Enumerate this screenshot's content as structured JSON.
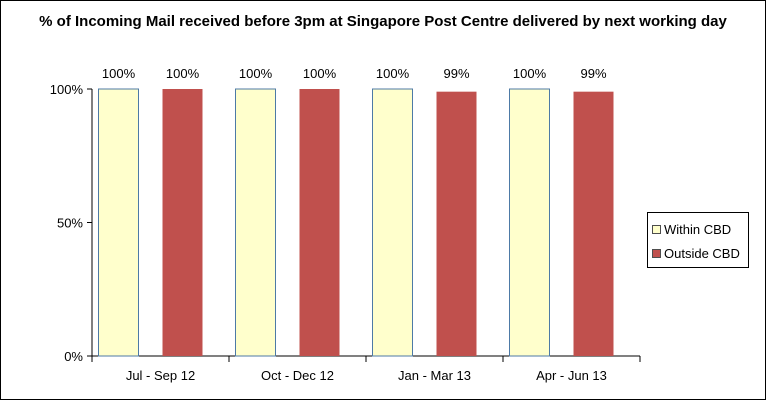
{
  "chart_data": {
    "type": "bar",
    "title": "% of Incoming Mail received before 3pm at Singapore Post Centre delivered by next working day",
    "categories": [
      "Jul - Sep 12",
      "Oct - Dec 12",
      "Jan - Mar 13",
      "Apr - Jun 13"
    ],
    "series": [
      {
        "name": "Within CBD",
        "color": "#ffffcc",
        "values": [
          100,
          100,
          100,
          100
        ],
        "labels": [
          "100%",
          "100%",
          "100%",
          "100%"
        ]
      },
      {
        "name": "Outside CBD",
        "color": "#c0504d",
        "values": [
          100,
          100,
          99,
          99
        ],
        "labels": [
          "100%",
          "100%",
          "99%",
          "99%"
        ]
      }
    ],
    "yticks": [
      0,
      50,
      100
    ],
    "ytick_labels": [
      "0%",
      "50%",
      "100%"
    ],
    "ylim": [
      0,
      100
    ],
    "grid": false,
    "legend_position": "right"
  }
}
